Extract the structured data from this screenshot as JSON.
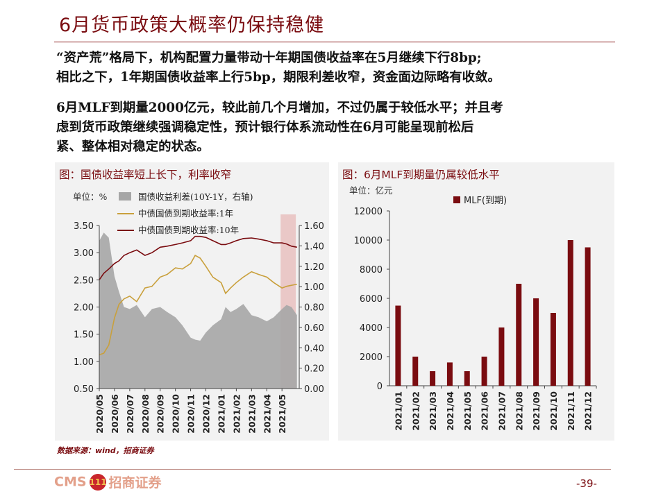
{
  "slide": {
    "title": "6月货币政策大概率仍保持稳健",
    "para1": [
      "“资产荒”格局下，机构配置力量带动十年期国债收益率在5月继续下行8bp;",
      "相比之下，1年期国债收益率上行5bp，期限利差收窄，资金面边际略有收敛。"
    ],
    "para2": [
      "6月MLF到期量2000亿元，较此前几个月增加，不过仍属于较低水平；并且考",
      "虑到货币政策继续强调稳定性，预计银行体系流动性在6月可能呈现前松后",
      "紧、整体相对稳定的状态。"
    ],
    "source": "数据来源：wind，招商证券",
    "logo_text": "CMS",
    "logo_mark": "111",
    "logo_cn": "招商证券",
    "page_number": "-39-"
  },
  "chart_data": [
    {
      "type": "line",
      "title": "图：国债收益率短上长下，利率收窄",
      "unit": "单位：%",
      "x_ticks": [
        "2020/05",
        "2020/06",
        "2020/07",
        "2020/08",
        "2020/09",
        "2020/10",
        "2020/11",
        "2020/12",
        "2021/01",
        "2021/02",
        "2021/03",
        "2021/04",
        "2021/05"
      ],
      "ylim_left": [
        0.5,
        3.5
      ],
      "y_ticks_left": [
        "3.50",
        "3.00",
        "2.50",
        "2.00",
        "1.50",
        "1.00",
        "0.50"
      ],
      "ylim_right": [
        0.0,
        1.6
      ],
      "y_ticks_right": [
        "1.60",
        "1.40",
        "1.20",
        "1.00",
        "0.80",
        "0.60",
        "0.40",
        "0.20",
        "0.00"
      ],
      "highlight_range": [
        "2021/05",
        "2021/06"
      ],
      "series": [
        {
          "name": "国债收益利差(10Y-1Y，右轴)",
          "type": "area",
          "axis": "right",
          "color": "#a6a6a6",
          "x": [
            "2020/05/01",
            "2020/05/10",
            "2020/05/20",
            "2020/06/01",
            "2020/06/10",
            "2020/06/20",
            "2020/07/01",
            "2020/07/15",
            "2020/08/01",
            "2020/08/15",
            "2020/09/01",
            "2020/09/15",
            "2020/10/01",
            "2020/10/15",
            "2020/11/01",
            "2020/11/10",
            "2020/11/20",
            "2020/12/01",
            "2020/12/15",
            "2021/01/01",
            "2021/01/10",
            "2021/01/20",
            "2021/02/01",
            "2021/02/15",
            "2021/03/01",
            "2021/03/15",
            "2021/04/01",
            "2021/04/15",
            "2021/05/01",
            "2021/05/10",
            "2021/05/20",
            "2021/05/31"
          ],
          "values": [
            1.45,
            1.53,
            1.48,
            1.1,
            0.95,
            0.8,
            0.78,
            0.82,
            0.7,
            0.78,
            0.8,
            0.75,
            0.7,
            0.62,
            0.5,
            0.48,
            0.47,
            0.55,
            0.62,
            0.68,
            0.8,
            0.75,
            0.78,
            0.83,
            0.72,
            0.7,
            0.66,
            0.7,
            0.78,
            0.82,
            0.8,
            0.72
          ]
        },
        {
          "name": "中债国债到期收益率:1年",
          "type": "line",
          "axis": "left",
          "color": "#c9a03c",
          "x": [
            "2020/05/01",
            "2020/05/10",
            "2020/05/20",
            "2020/06/01",
            "2020/06/10",
            "2020/06/20",
            "2020/07/01",
            "2020/07/15",
            "2020/08/01",
            "2020/08/15",
            "2020/09/01",
            "2020/09/15",
            "2020/10/01",
            "2020/10/15",
            "2020/11/01",
            "2020/11/10",
            "2020/11/20",
            "2020/12/01",
            "2020/12/15",
            "2021/01/01",
            "2021/01/10",
            "2021/01/20",
            "2021/02/01",
            "2021/02/15",
            "2021/03/01",
            "2021/03/15",
            "2021/04/01",
            "2021/04/15",
            "2021/05/01",
            "2021/05/10",
            "2021/05/20",
            "2021/05/31"
          ],
          "values": [
            1.12,
            1.15,
            1.3,
            1.8,
            2.05,
            2.15,
            2.2,
            2.1,
            2.35,
            2.38,
            2.55,
            2.6,
            2.72,
            2.7,
            2.8,
            2.95,
            2.9,
            2.75,
            2.55,
            2.45,
            2.25,
            2.35,
            2.45,
            2.55,
            2.65,
            2.6,
            2.55,
            2.45,
            2.35,
            2.38,
            2.4,
            2.42
          ]
        },
        {
          "name": "中债国债到期收益率:10年",
          "type": "line",
          "axis": "left",
          "color": "#7a0c10",
          "x": [
            "2020/05/01",
            "2020/05/10",
            "2020/05/20",
            "2020/06/01",
            "2020/06/10",
            "2020/06/20",
            "2020/07/01",
            "2020/07/15",
            "2020/08/01",
            "2020/08/15",
            "2020/09/01",
            "2020/09/15",
            "2020/10/01",
            "2020/10/15",
            "2020/11/01",
            "2020/11/10",
            "2020/11/20",
            "2020/12/01",
            "2020/12/15",
            "2021/01/01",
            "2021/01/10",
            "2021/01/20",
            "2021/02/01",
            "2021/02/15",
            "2021/03/01",
            "2021/03/15",
            "2021/04/01",
            "2021/04/15",
            "2021/05/01",
            "2021/05/10",
            "2021/05/20",
            "2021/05/31"
          ],
          "values": [
            2.5,
            2.62,
            2.7,
            2.8,
            2.85,
            2.95,
            3.0,
            3.05,
            2.95,
            3.0,
            3.1,
            3.12,
            3.15,
            3.18,
            3.22,
            3.3,
            3.3,
            3.28,
            3.22,
            3.15,
            3.15,
            3.18,
            3.22,
            3.26,
            3.27,
            3.25,
            3.22,
            3.18,
            3.18,
            3.16,
            3.12,
            3.1
          ]
        }
      ]
    },
    {
      "type": "bar",
      "title": "图：6月MLF到期量仍属较低水平",
      "unit": "单位：亿元",
      "categories": [
        "2021/01",
        "2021/02",
        "2021/03",
        "2021/04",
        "2021/05",
        "2021/06",
        "2021/07",
        "2021/08",
        "2021/09",
        "2021/10",
        "2021/11",
        "2021/12"
      ],
      "series": [
        {
          "name": "MLF(到期)",
          "color": "#7a0c10",
          "values": [
            5500,
            2000,
            1000,
            1600,
            1000,
            2000,
            4000,
            7000,
            6000,
            5000,
            10000,
            9500
          ]
        }
      ],
      "ylim": [
        0,
        12000
      ],
      "y_ticks": [
        "12000",
        "10000",
        "8000",
        "6000",
        "4000",
        "2000",
        "0"
      ]
    }
  ]
}
